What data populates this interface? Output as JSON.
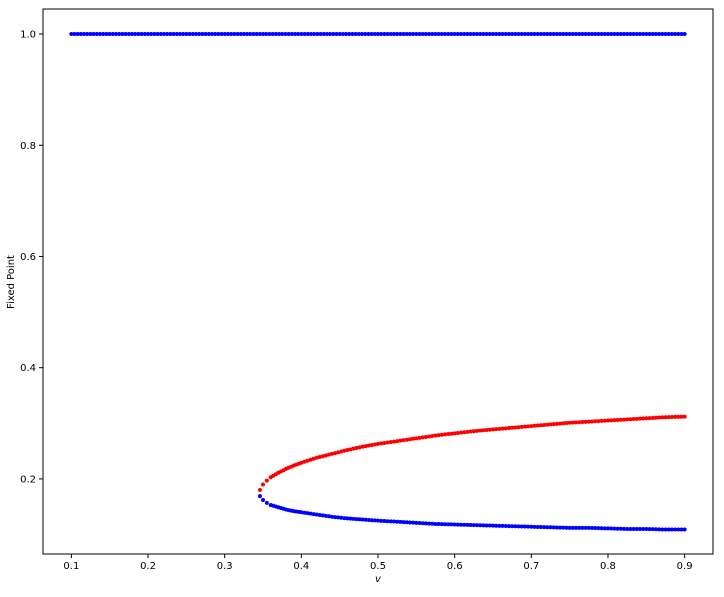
{
  "chart_data": {
    "type": "scatter",
    "xlabel": "v",
    "ylabel": "Fixed Point",
    "xlim": [
      0.063,
      0.937
    ],
    "ylim": [
      0.065,
      1.045
    ],
    "xticks": [
      0.1,
      0.2,
      0.3,
      0.4,
      0.5,
      0.6,
      0.7,
      0.8,
      0.9
    ],
    "xtick_labels": [
      "0.1",
      "0.2",
      "0.3",
      "0.4",
      "0.5",
      "0.6",
      "0.7",
      "0.8",
      "0.9"
    ],
    "yticks": [
      0.2,
      0.4,
      0.6,
      0.8,
      1.0
    ],
    "ytick_labels": [
      "0.2",
      "0.4",
      "0.6",
      "0.8",
      "1.0"
    ],
    "grid": false,
    "colors": {
      "stable": "#0000ff",
      "unstable": "#ff0000"
    },
    "series": [
      {
        "color": "#0000ff",
        "x": [
          0.1,
          0.125,
          0.15,
          0.175,
          0.2,
          0.225,
          0.25,
          0.275,
          0.3,
          0.325,
          0.35,
          0.375,
          0.4,
          0.425,
          0.45,
          0.475,
          0.5,
          0.525,
          0.55,
          0.575,
          0.6,
          0.625,
          0.65,
          0.675,
          0.7,
          0.725,
          0.75,
          0.775,
          0.8,
          0.825,
          0.85,
          0.875,
          0.9
        ],
        "y": [
          1.0,
          1.0,
          1.0,
          1.0,
          1.0,
          1.0,
          1.0,
          1.0,
          1.0,
          1.0,
          1.0,
          1.0,
          1.0,
          1.0,
          1.0,
          1.0,
          1.0,
          1.0,
          1.0,
          1.0,
          1.0,
          1.0,
          1.0,
          1.0,
          1.0,
          1.0,
          1.0,
          1.0,
          1.0,
          1.0,
          1.0,
          1.0,
          1.0
        ]
      },
      {
        "color": "#0000ff",
        "x": [
          0.346,
          0.35,
          0.355,
          0.36,
          0.37,
          0.38,
          0.39,
          0.4,
          0.42,
          0.44,
          0.46,
          0.48,
          0.5,
          0.525,
          0.55,
          0.575,
          0.6,
          0.625,
          0.65,
          0.675,
          0.7,
          0.725,
          0.75,
          0.775,
          0.8,
          0.825,
          0.85,
          0.875,
          0.9
        ],
        "y": [
          0.169,
          0.162,
          0.157,
          0.153,
          0.149,
          0.145,
          0.142,
          0.14,
          0.136,
          0.132,
          0.129,
          0.127,
          0.125,
          0.123,
          0.121,
          0.119,
          0.118,
          0.117,
          0.116,
          0.115,
          0.114,
          0.113,
          0.112,
          0.112,
          0.111,
          0.11,
          0.11,
          0.109,
          0.109
        ]
      },
      {
        "color": "#ff0000",
        "x": [
          0.346,
          0.35,
          0.355,
          0.36,
          0.37,
          0.38,
          0.39,
          0.4,
          0.42,
          0.44,
          0.46,
          0.48,
          0.5,
          0.525,
          0.55,
          0.575,
          0.6,
          0.625,
          0.65,
          0.675,
          0.7,
          0.725,
          0.75,
          0.775,
          0.8,
          0.825,
          0.85,
          0.875,
          0.9
        ],
        "y": [
          0.18,
          0.19,
          0.197,
          0.203,
          0.211,
          0.218,
          0.224,
          0.229,
          0.238,
          0.245,
          0.252,
          0.258,
          0.263,
          0.268,
          0.273,
          0.278,
          0.282,
          0.286,
          0.289,
          0.292,
          0.295,
          0.298,
          0.301,
          0.303,
          0.305,
          0.307,
          0.309,
          0.311,
          0.312
        ]
      }
    ]
  }
}
